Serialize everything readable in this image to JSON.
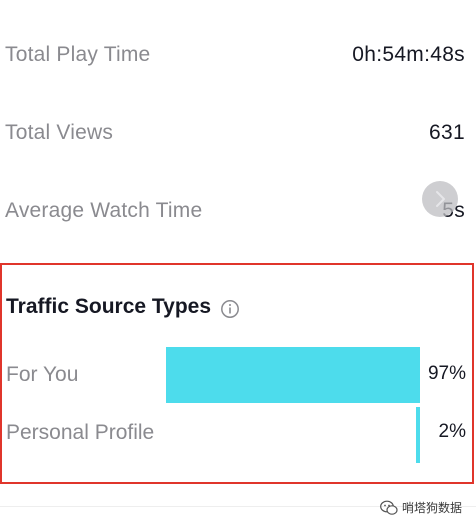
{
  "stats": [
    {
      "label": "Total Play Time",
      "value": "0h:54m:48s"
    },
    {
      "label": "Total Views",
      "value": "631"
    },
    {
      "label": "Average Watch Time",
      "value": "5s"
    }
  ],
  "traffic": {
    "title": "Traffic Source Types",
    "info_icon": "info-circle-icon",
    "sources": [
      {
        "label": "For You",
        "percent_text": "97%",
        "fraction": 0.97
      },
      {
        "label": "Personal Profile",
        "percent_text": "2%",
        "fraction": 0.02
      }
    ],
    "bar_color": "#4ddcec"
  },
  "colors": {
    "highlight_border": "#e0352b",
    "label_gray": "#8a8a8f",
    "value_dark": "#161823"
  },
  "watermark": {
    "text": "哨塔狗数据",
    "icon": "wechat-icon"
  }
}
